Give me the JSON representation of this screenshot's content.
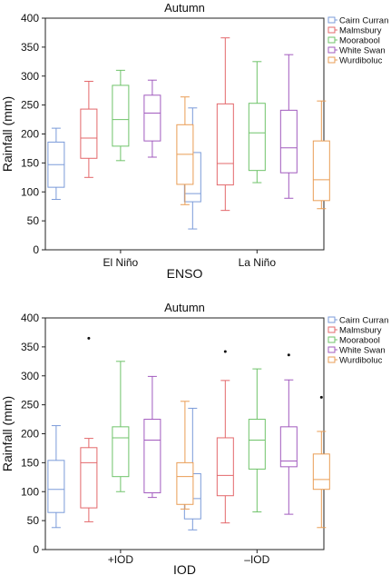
{
  "chart_data": [
    {
      "type": "box",
      "title": "Autumn",
      "xlabel": "ENSO",
      "ylabel": "Rainfall (mm)",
      "ylim": [
        0,
        400
      ],
      "yticks": [
        0,
        50,
        100,
        150,
        200,
        250,
        300,
        350,
        400
      ],
      "categories": [
        "El Niño",
        "La Niño"
      ],
      "legend_position": "right",
      "series": [
        {
          "name": "Cairn Curran",
          "color": "#7b9bd9",
          "boxes": [
            {
              "min": 87,
              "q1": 108,
              "median": 147,
              "q3": 186,
              "max": 210,
              "outliers": []
            },
            {
              "min": 36,
              "q1": 83,
              "median": 97,
              "q3": 168,
              "max": 245,
              "outliers": []
            }
          ]
        },
        {
          "name": "Malmsbury",
          "color": "#e3686b",
          "boxes": [
            {
              "min": 125,
              "q1": 158,
              "median": 193,
              "q3": 243,
              "max": 291,
              "outliers": []
            },
            {
              "min": 68,
              "q1": 112,
              "median": 149,
              "q3": 252,
              "max": 366,
              "outliers": []
            }
          ]
        },
        {
          "name": "Moorabool",
          "color": "#6fc36a",
          "boxes": [
            {
              "min": 154,
              "q1": 179,
              "median": 225,
              "q3": 284,
              "max": 310,
              "outliers": []
            },
            {
              "min": 116,
              "q1": 137,
              "median": 202,
              "q3": 253,
              "max": 325,
              "outliers": []
            }
          ]
        },
        {
          "name": "White Swan",
          "color": "#a25bbe",
          "boxes": [
            {
              "min": 160,
              "q1": 188,
              "median": 236,
              "q3": 267,
              "max": 293,
              "outliers": []
            },
            {
              "min": 89,
              "q1": 133,
              "median": 176,
              "q3": 241,
              "max": 337,
              "outliers": []
            }
          ]
        },
        {
          "name": "Wurdiboluc",
          "color": "#e99d55",
          "boxes": [
            {
              "min": 78,
              "q1": 113,
              "median": 165,
              "q3": 216,
              "max": 264,
              "outliers": []
            },
            {
              "min": 71,
              "q1": 85,
              "median": 121,
              "q3": 188,
              "max": 257,
              "outliers": []
            }
          ]
        }
      ]
    },
    {
      "type": "box",
      "title": "Autumn",
      "xlabel": "IOD",
      "ylabel": "Rainfall (mm)",
      "ylim": [
        0,
        400
      ],
      "yticks": [
        0,
        50,
        100,
        150,
        200,
        250,
        300,
        350,
        400
      ],
      "categories": [
        "+IOD",
        "–IOD"
      ],
      "legend_position": "right",
      "series": [
        {
          "name": "Cairn Curran",
          "color": "#7b9bd9",
          "boxes": [
            {
              "min": 38,
              "q1": 64,
              "median": 104,
              "q3": 154,
              "max": 214,
              "outliers": []
            },
            {
              "min": 34,
              "q1": 53,
              "median": 88,
              "q3": 131,
              "max": 244,
              "outliers": []
            }
          ]
        },
        {
          "name": "Malmsbury",
          "color": "#e3686b",
          "boxes": [
            {
              "min": 48,
              "q1": 72,
              "median": 150,
              "q3": 176,
              "max": 192,
              "outliers": [
                365
              ]
            },
            {
              "min": 46,
              "q1": 93,
              "median": 128,
              "q3": 193,
              "max": 292,
              "outliers": [
                342
              ]
            }
          ]
        },
        {
          "name": "Moorabool",
          "color": "#6fc36a",
          "boxes": [
            {
              "min": 100,
              "q1": 126,
              "median": 193,
              "q3": 212,
              "max": 325,
              "outliers": []
            },
            {
              "min": 65,
              "q1": 139,
              "median": 189,
              "q3": 225,
              "max": 312,
              "outliers": []
            }
          ]
        },
        {
          "name": "White Swan",
          "color": "#a25bbe",
          "boxes": [
            {
              "min": 90,
              "q1": 98,
              "median": 189,
              "q3": 225,
              "max": 299,
              "outliers": []
            },
            {
              "min": 61,
              "q1": 143,
              "median": 153,
              "q3": 212,
              "max": 293,
              "outliers": [
                336
              ]
            }
          ]
        },
        {
          "name": "Wurdiboluc",
          "color": "#e99d55",
          "boxes": [
            {
              "min": 70,
              "q1": 78,
              "median": 126,
              "q3": 150,
              "max": 256,
              "outliers": []
            },
            {
              "min": 38,
              "q1": 104,
              "median": 121,
              "q3": 165,
              "max": 204,
              "outliers": [
                263
              ]
            }
          ]
        }
      ]
    }
  ]
}
